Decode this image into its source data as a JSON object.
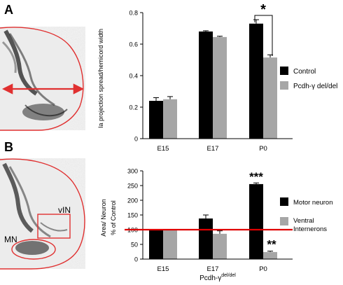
{
  "panels": [
    {
      "letter": "A"
    },
    {
      "letter": "B"
    }
  ],
  "micrograph_b_labels": {
    "vin": "vIN",
    "mn": "MN"
  },
  "colors": {
    "control": "#000000",
    "mutant": "#a6a6a6",
    "outline": "#e03030",
    "arrow": "#e03030",
    "reference_line": "#e00000"
  },
  "chart_data": [
    {
      "type": "bar",
      "categories": [
        "E15",
        "E17",
        "P0"
      ],
      "ylabel": "Ia projection spread/hemicord width",
      "ylim": [
        0,
        0.8
      ],
      "yticks": [
        "0",
        "0.2",
        "0.4",
        "0.6",
        "0.8"
      ],
      "series": [
        {
          "name": "Control",
          "values": [
            0.24,
            0.68,
            0.73
          ],
          "errors": [
            0.02,
            0.005,
            0.025
          ]
        },
        {
          "name": "Pcdh-γ del/del",
          "values": [
            0.25,
            0.645,
            0.515
          ],
          "errors": [
            0.017,
            0.005,
            0.017
          ]
        }
      ],
      "annotations": [
        {
          "text": "*",
          "between": [
            "Control",
            "Pcdh-γ del/del"
          ],
          "category": "P0"
        }
      ]
    },
    {
      "type": "bar",
      "categories": [
        "E15",
        "E17",
        "P0"
      ],
      "ylabel": "Area/ Neuron",
      "ylabel2": "% of Control",
      "xlabel": "Pcdh-γ",
      "xlabel_sup": "del/del",
      "ylim": [
        0,
        300
      ],
      "yticks": [
        "0",
        "50",
        "100",
        "150",
        "200",
        "250",
        "300"
      ],
      "reference_line": 100,
      "series": [
        {
          "name": "Motor neuron",
          "values": [
            98,
            138,
            255
          ],
          "errors": [
            0,
            12,
            4
          ]
        },
        {
          "name": "Ventral Internerons",
          "legend_lines": [
            "Ventral",
            "Internerons"
          ],
          "values": [
            98,
            86,
            24
          ],
          "errors": [
            0,
            10,
            3
          ]
        }
      ],
      "annotations": [
        {
          "text": "***",
          "series": "Motor neuron",
          "category": "P0"
        },
        {
          "text": "**",
          "series": "Ventral Internerons",
          "category": "P0"
        }
      ]
    }
  ]
}
